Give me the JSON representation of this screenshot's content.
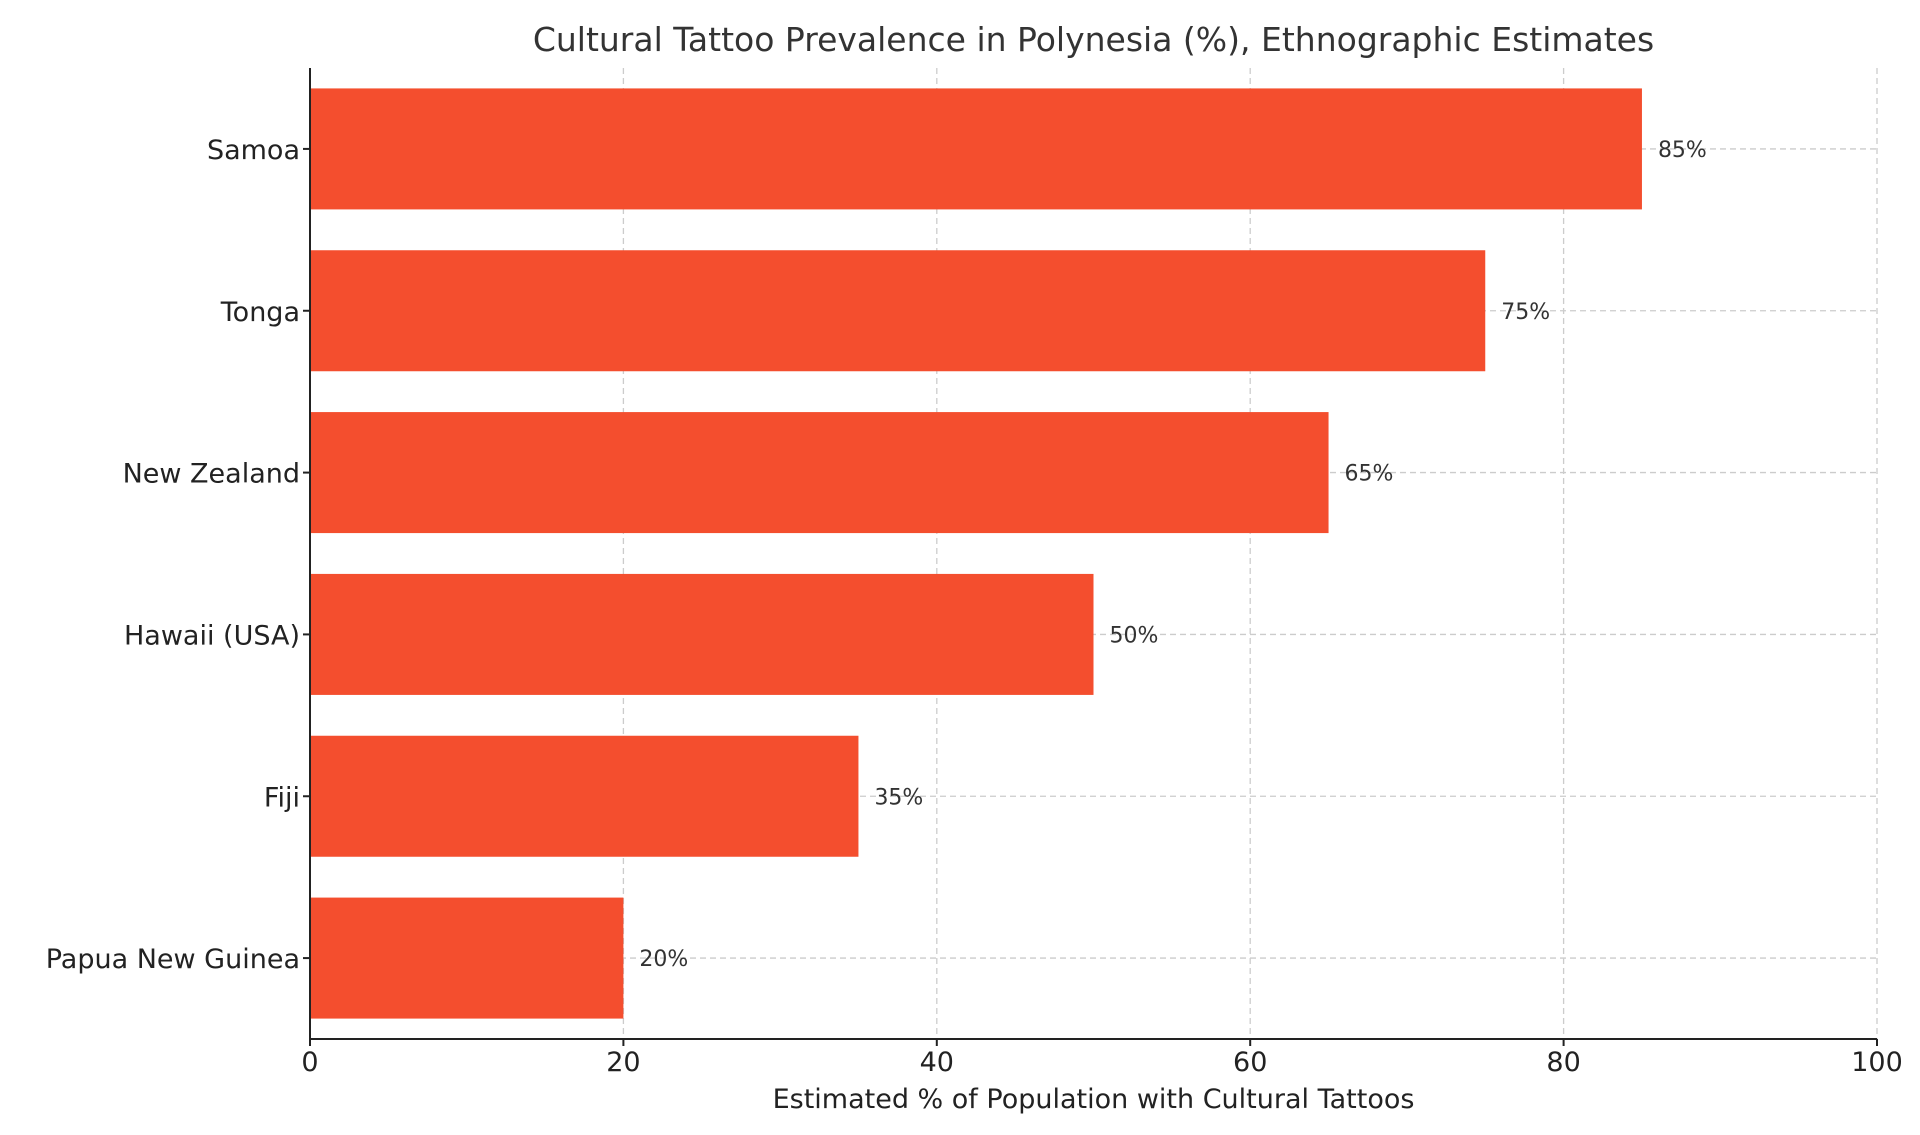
{
  "chart_data": {
    "type": "bar",
    "orientation": "horizontal",
    "title": "Cultural Tattoo Prevalence in Polynesia (%), Ethnographic Estimates",
    "xlabel": "Estimated % of Population with Cultural Tattoos",
    "ylabel": "",
    "categories": [
      "Samoa",
      "Tonga",
      "New Zealand",
      "Hawaii (USA)",
      "Fiji",
      "Papua New Guinea"
    ],
    "values": [
      85,
      75,
      65,
      50,
      35,
      20
    ],
    "data_labels": [
      "85%",
      "75%",
      "65%",
      "50%",
      "35%",
      "20%"
    ],
    "xlim": [
      0,
      100
    ],
    "xticks": [
      0,
      20,
      40,
      60,
      80,
      100
    ],
    "xtick_labels": [
      "0",
      "20",
      "40",
      "60",
      "80",
      "100"
    ],
    "grid": true,
    "bar_color": "#f44e2e"
  }
}
